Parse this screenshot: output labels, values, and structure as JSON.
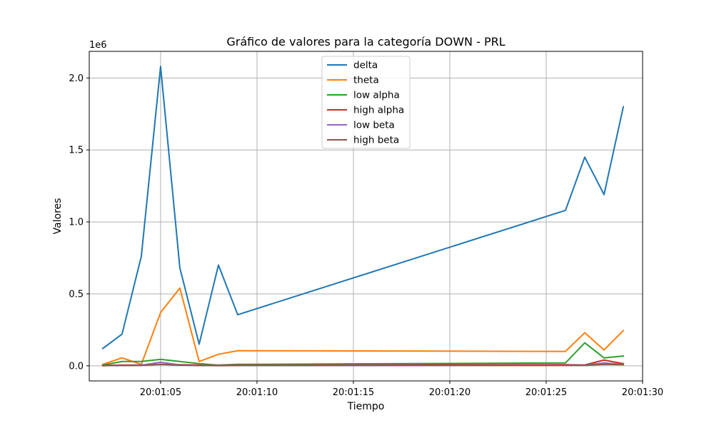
{
  "chart_data": {
    "type": "line",
    "title": "Gráfico de valores para la categoría DOWN - PRL",
    "xlabel": "Tiempo",
    "ylabel": "Valores",
    "y_scale_label": "1e6",
    "xlim": [
      1.3,
      30.0
    ],
    "ylim": [
      -0.105,
      2.185
    ],
    "x_ticks": [
      {
        "value": 5,
        "label": "20:01:05"
      },
      {
        "value": 10,
        "label": "20:01:10"
      },
      {
        "value": 15,
        "label": "20:01:15"
      },
      {
        "value": 20,
        "label": "20:01:20"
      },
      {
        "value": 25,
        "label": "20:01:25"
      },
      {
        "value": 30,
        "label": "20:01:30"
      }
    ],
    "y_ticks": [
      {
        "value": 0.0,
        "label": "0.0"
      },
      {
        "value": 0.5,
        "label": "0.5"
      },
      {
        "value": 1.0,
        "label": "1.0"
      },
      {
        "value": 1.5,
        "label": "1.5"
      },
      {
        "value": 2.0,
        "label": "2.0"
      }
    ],
    "x": [
      2,
      3,
      4,
      5,
      6,
      7,
      8,
      9,
      26,
      27,
      28,
      29
    ],
    "series": [
      {
        "name": "delta",
        "color": "#1f77b4",
        "values": [
          0.12,
          0.22,
          0.76,
          2.08,
          0.68,
          0.15,
          0.7,
          0.355,
          1.08,
          1.45,
          1.19,
          1.8
        ]
      },
      {
        "name": "theta",
        "color": "#ff7f0e",
        "values": [
          0.01,
          0.055,
          0.01,
          0.37,
          0.54,
          0.03,
          0.08,
          0.105,
          0.1,
          0.23,
          0.11,
          0.245
        ]
      },
      {
        "name": "low alpha",
        "color": "#2ca02c",
        "values": [
          0.005,
          0.03,
          0.03,
          0.045,
          0.03,
          0.015,
          0.005,
          0.01,
          0.02,
          0.16,
          0.055,
          0.068
        ]
      },
      {
        "name": "high alpha",
        "color": "#d62728",
        "values": [
          0.002,
          0.005,
          0.005,
          0.01,
          0.008,
          0.005,
          0.003,
          0.005,
          0.008,
          0.006,
          0.04,
          0.015
        ]
      },
      {
        "name": "low beta",
        "color": "#9467bd",
        "values": [
          0.001,
          0.003,
          0.004,
          0.025,
          0.006,
          0.003,
          0.002,
          0.003,
          0.004,
          0.005,
          0.02,
          0.01
        ]
      },
      {
        "name": "high beta",
        "color": "#8c564b",
        "values": [
          0.001,
          0.002,
          0.003,
          0.01,
          0.004,
          0.002,
          0.001,
          0.002,
          0.003,
          0.003,
          0.01,
          0.008
        ]
      }
    ],
    "grid": true,
    "legend_position": "upper center"
  }
}
